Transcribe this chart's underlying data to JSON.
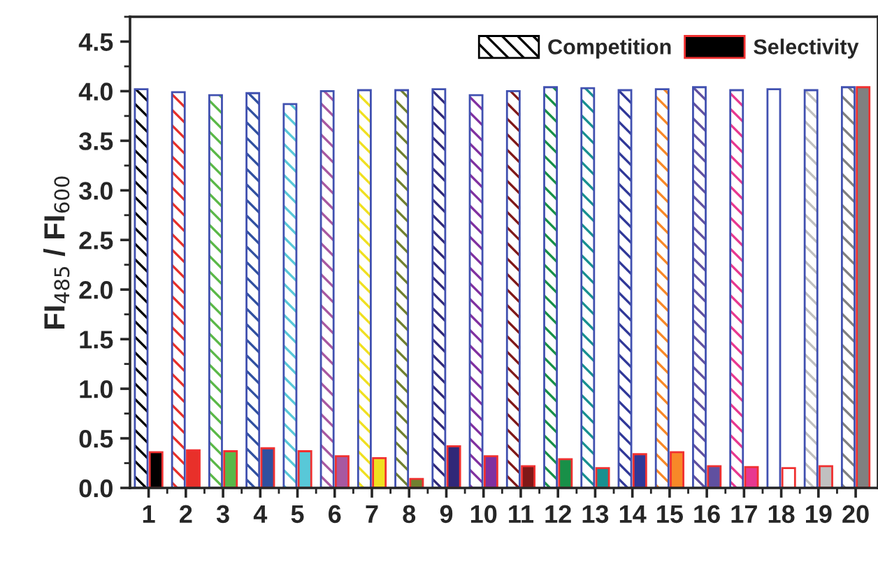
{
  "chart_data": {
    "type": "bar",
    "ylabel": "FI$_{485}$ / FI$_{600}$",
    "categories": [
      "1",
      "2",
      "3",
      "4",
      "5",
      "6",
      "7",
      "8",
      "9",
      "10",
      "11",
      "12",
      "13",
      "14",
      "15",
      "16",
      "17",
      "18",
      "19",
      "20"
    ],
    "series": [
      {
        "name": "Competition",
        "color": "#000000",
        "colors": [
          "#000000",
          "#e8302a",
          "#5ab848",
          "#3050a0",
          "#58c8d8",
          "#a858a0",
          "#f0e020",
          "#708030",
          "#302878",
          "#8030a0",
          "#801818",
          "#189048",
          "#189090",
          "#303898",
          "#f88828",
          "#6050a0",
          "#e83890",
          "#ffffff",
          "#c0c0c0",
          "#808080"
        ],
        "values": [
          4.02,
          3.99,
          3.96,
          3.98,
          3.87,
          4.0,
          4.01,
          4.01,
          4.02,
          3.96,
          4.0,
          4.04,
          4.03,
          4.01,
          4.02,
          4.04,
          4.01,
          4.02,
          4.01,
          4.04
        ]
      },
      {
        "name": "Selectivity",
        "color": "#000000",
        "colors": [
          "#000000",
          "#e8302a",
          "#5ab848",
          "#3050a0",
          "#58c8d8",
          "#a858a0",
          "#f0e020",
          "#708030",
          "#302878",
          "#8030a0",
          "#801818",
          "#189048",
          "#189090",
          "#303898",
          "#f88828",
          "#6050a0",
          "#e83890",
          "#ffffff",
          "#c0c0c0",
          "#808080"
        ],
        "values": [
          0.36,
          0.38,
          0.37,
          0.4,
          0.37,
          0.32,
          0.3,
          0.09,
          0.42,
          0.32,
          0.22,
          0.29,
          0.2,
          0.34,
          0.36,
          0.22,
          0.21,
          0.2,
          0.22,
          4.04
        ]
      }
    ],
    "ylim": [
      0,
      4.75
    ],
    "yticks": [
      {
        "value": 0,
        "label": "0.0"
      },
      0.5,
      {
        "value": 1,
        "label": "1.0"
      },
      1.5,
      {
        "value": 2,
        "label": "2.0"
      },
      2.5,
      {
        "value": 3,
        "label": "3.0"
      },
      3.5,
      {
        "value": 4,
        "label": "4.0"
      },
      4.5
    ],
    "legend": "top right",
    "grid": false
  }
}
